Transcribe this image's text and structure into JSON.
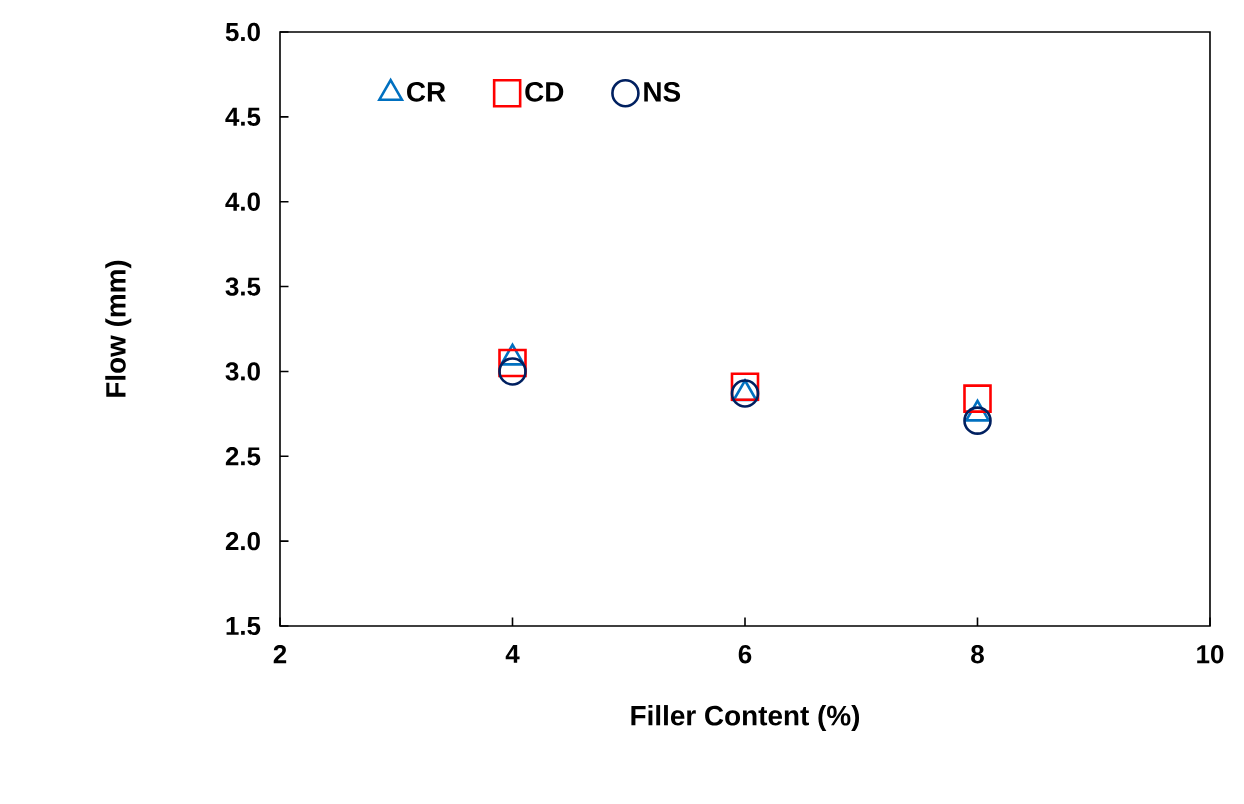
{
  "chart_data": {
    "type": "scatter",
    "xlabel": "Filler Content (%)",
    "ylabel": "Flow (mm)",
    "xlim": [
      2,
      10
    ],
    "xticks": [
      2,
      4,
      6,
      8,
      10
    ],
    "ylim": [
      1.5,
      5.0
    ],
    "yticks": [
      {
        "value": 1.5,
        "label": "1.5"
      },
      {
        "value": 2.0,
        "label": "2.0"
      },
      {
        "value": 2.5,
        "label": "2.5"
      },
      {
        "value": 3.0,
        "label": "3.0"
      },
      {
        "value": 3.5,
        "label": "3.5"
      },
      {
        "value": 4.0,
        "label": "4.0"
      },
      {
        "value": 4.5,
        "label": "4.5"
      },
      {
        "value": 5.0,
        "label": "5.0"
      }
    ],
    "x": [
      4,
      6,
      8
    ],
    "legend": "top left",
    "grid": false,
    "series": [
      {
        "name": "CR",
        "color": "#0070c0",
        "marker": "triangle",
        "values": [
          3.08,
          2.87,
          2.75
        ]
      },
      {
        "name": "CD",
        "color": "#ff0000",
        "marker": "square",
        "values": [
          3.05,
          2.91,
          2.84
        ]
      },
      {
        "name": "NS",
        "color": "#002060",
        "marker": "circle",
        "values": [
          3.0,
          2.87,
          2.71
        ]
      }
    ]
  }
}
